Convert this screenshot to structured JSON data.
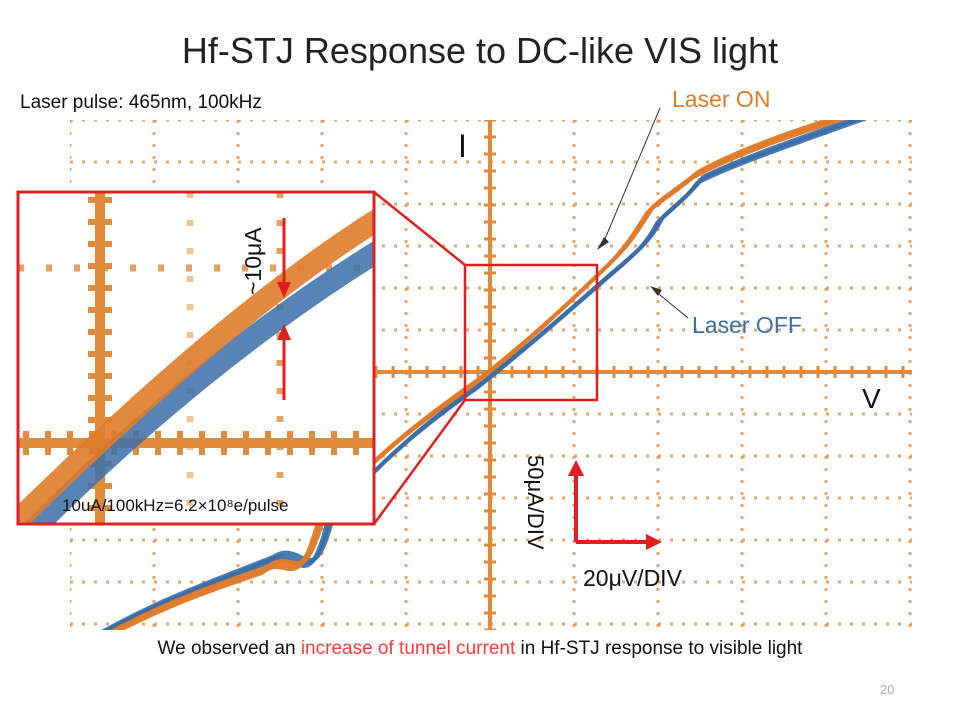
{
  "slide": {
    "title": "Hf-STJ Response to DC-like VIS light",
    "laser_pulse": "Laser pulse: 465nm, 100kHz",
    "laser_on_label": "Laser ON",
    "laser_off_label": "Laser OFF",
    "axis_current": "I",
    "axis_voltage": "V",
    "scale_current": "50μA/DIV",
    "scale_voltage": "20μV/DIV",
    "inset_delta": "~10μA",
    "inset_equation": "10uA/100kHz=6.2×10⁸e/pulse",
    "caption": {
      "before": "We observed an ",
      "highlight": "increase of tunnel current",
      "after": " in Hf-STJ response to visible light"
    },
    "slide_number": "20"
  },
  "colors": {
    "laser_on": "#e07b2a",
    "laser_off": "#3a6ea8",
    "highlight": "#ff3b3b",
    "grid": "#e08a3c"
  }
}
